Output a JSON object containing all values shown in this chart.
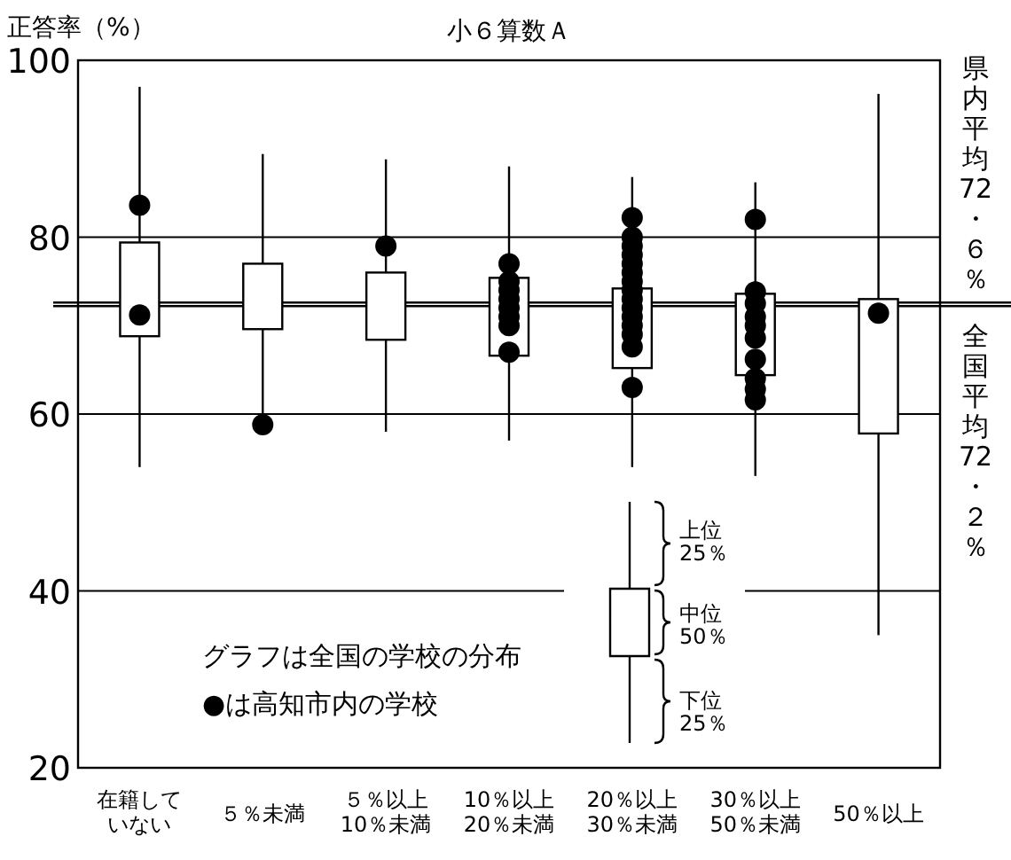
{
  "chart_data": {
    "type": "box",
    "title": "小６算数Ａ",
    "ylabel": "正答率（%）",
    "categories": [
      "在籍していない",
      "５％未満",
      "５％以上10％未満",
      "10％以上20％未満",
      "20％以上30％未満",
      "30％以上50％未満",
      "50％以上"
    ],
    "boxes": [
      {
        "low": 54,
        "q1": 68.8,
        "q3": 79.4,
        "high": 97
      },
      {
        "low": 59,
        "q1": 69.6,
        "q3": 77,
        "high": 89.4
      },
      {
        "low": 58,
        "q1": 68.4,
        "q3": 76,
        "high": 88.8
      },
      {
        "low": 57,
        "q1": 66.6,
        "q3": 75.4,
        "high": 88
      },
      {
        "low": 54,
        "q1": 65.2,
        "q3": 74.2,
        "high": 86.8
      },
      {
        "low": 53,
        "q1": 64.4,
        "q3": 73.6,
        "high": 86.2
      },
      {
        "low": 35,
        "q1": 57.8,
        "q3": 73,
        "high": 96.2
      }
    ],
    "series": [
      {
        "type": "scatter",
        "color": "#000000",
        "marker": "circle",
        "x": [
          "在籍していない",
          "在籍していない",
          "５％未満",
          "５％以上10％未満",
          "10％以上20％未満",
          "10％以上20％未満",
          "10％以上20％未満",
          "10％以上20％未満",
          "10％以上20％未満",
          "10％以上20％未満",
          "10％以上20％未満",
          "10％以上20％未満",
          "20％以上30％未満",
          "20％以上30％未満",
          "20％以上30％未満",
          "20％以上30％未満",
          "20％以上30％未満",
          "20％以上30％未満",
          "20％以上30％未満",
          "20％以上30％未満",
          "20％以上30％未満",
          "20％以上30％未満",
          "20％以上30％未満",
          "20％以上30％未満",
          "20％以上30％未満",
          "20％以上30％未満",
          "20％以上30％未満",
          "30％以上50％未満",
          "30％以上50％未満",
          "30％以上50％未満",
          "30％以上50％未満",
          "30％以上50％未満",
          "30％以上50％未満",
          "30％以上50％未満",
          "30％以上50％未満",
          "30％以上50％未満",
          "30％以上50％未満",
          "50％以上"
        ],
        "values": [
          83.6,
          71.2,
          58.8,
          79,
          77,
          75,
          74,
          73,
          72,
          71,
          70,
          67,
          82.2,
          80,
          79,
          78,
          77,
          76,
          75,
          74,
          73,
          72,
          71,
          70,
          69,
          67.6,
          63,
          82,
          73.8,
          72.5,
          71,
          70,
          68.6,
          66.2,
          64,
          62.8,
          61.6,
          71.4
        ]
      }
    ],
    "ylim": [
      20,
      100
    ],
    "yticks": [
      20,
      40,
      60,
      80,
      100
    ],
    "grid": "y",
    "ref_lines": [
      {
        "axis": "y",
        "value": 72.6,
        "label": "県内平均72・６％"
      },
      {
        "axis": "y",
        "value": 72.2,
        "label": "全国平均72・２％"
      }
    ],
    "annotations": [
      "グラフは全国の学校の分布",
      "●は高知市内の学校",
      "上位\n25％",
      "中位\n50％",
      "下位\n25％"
    ]
  }
}
